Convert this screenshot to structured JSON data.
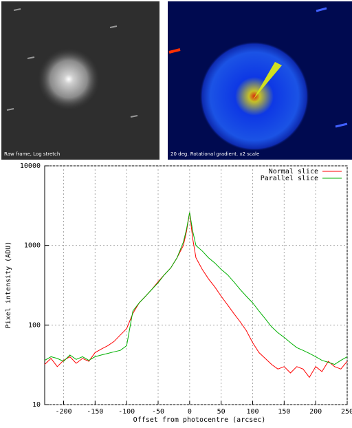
{
  "images": [
    {
      "caption": "Raw frame, Log stretch"
    },
    {
      "caption": "20 deg. Rotational gradient. x2 scale"
    }
  ],
  "chart_data": {
    "type": "line",
    "x_label": "Offset from photocentre (arcsec)",
    "y_label": "Pixel intensity (ADU)",
    "log_y": true,
    "grid": true,
    "legend": "top-right",
    "xlim": [
      -230,
      250
    ],
    "xticks": [
      -200,
      -150,
      -100,
      -50,
      0,
      50,
      100,
      150,
      200,
      250
    ],
    "ylim": [
      10,
      10000
    ],
    "yticks": [
      10,
      100,
      1000,
      10000
    ],
    "x": [
      -230,
      -220,
      -210,
      -200,
      -190,
      -180,
      -170,
      -160,
      -150,
      -140,
      -130,
      -120,
      -110,
      -100,
      -90,
      -80,
      -70,
      -60,
      -50,
      -40,
      -30,
      -20,
      -10,
      -5,
      0,
      5,
      10,
      20,
      30,
      40,
      50,
      60,
      70,
      80,
      90,
      100,
      110,
      120,
      130,
      140,
      150,
      160,
      170,
      180,
      190,
      200,
      210,
      220,
      230,
      240,
      250
    ],
    "series": [
      {
        "name": "Normal slice",
        "color": "#ff0000",
        "values": [
          32,
          38,
          30,
          36,
          40,
          33,
          38,
          35,
          45,
          50,
          55,
          62,
          75,
          90,
          140,
          190,
          230,
          280,
          350,
          430,
          520,
          700,
          1000,
          1500,
          2600,
          1200,
          700,
          500,
          380,
          300,
          230,
          180,
          140,
          110,
          85,
          60,
          45,
          38,
          32,
          28,
          30,
          25,
          30,
          28,
          22,
          30,
          26,
          35,
          30,
          28,
          35
        ]
      },
      {
        "name": "Parallel slice",
        "color": "#00b000",
        "values": [
          36,
          40,
          38,
          35,
          42,
          37,
          40,
          36,
          40,
          42,
          44,
          46,
          48,
          55,
          150,
          190,
          230,
          280,
          340,
          430,
          520,
          700,
          1100,
          1600,
          2600,
          1500,
          1000,
          850,
          700,
          600,
          500,
          430,
          350,
          280,
          230,
          190,
          150,
          120,
          95,
          80,
          70,
          60,
          52,
          48,
          44,
          40,
          36,
          34,
          32,
          36,
          40
        ]
      }
    ]
  }
}
